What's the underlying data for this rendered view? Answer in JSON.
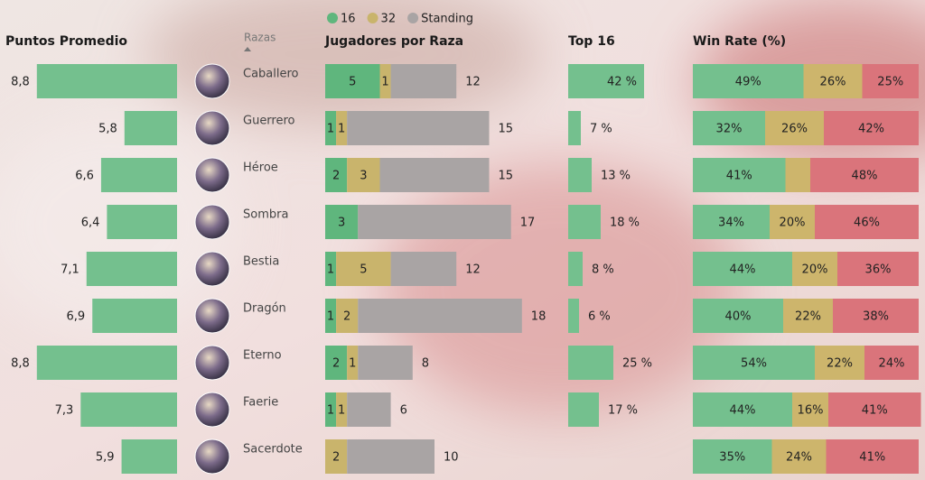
{
  "chart_data": [
    {
      "type": "hbar-left",
      "title": "Puntos Promedio",
      "values": [
        8.8,
        5.8,
        6.6,
        6.4,
        7.1,
        6.9,
        8.8,
        7.3,
        5.9
      ],
      "value_labels": [
        "8,8",
        "5,8",
        "6,6",
        "6,4",
        "7,1",
        "6,9",
        "8,8",
        "7,3",
        "5,9"
      ],
      "color": "#74c08e",
      "xlim": [
        4,
        10
      ]
    },
    {
      "type": "stacked-hbar",
      "title": "Jugadores por Raza",
      "category_label": "Razas",
      "categories": [
        "Caballero",
        "Guerrero",
        "Héroe",
        "Sombra",
        "Bestia",
        "Dragón",
        "Eterno",
        "Faerie",
        "Sacerdote"
      ],
      "series": [
        {
          "name": "16",
          "color": "#5fb67d",
          "values": [
            5,
            1,
            2,
            3,
            1,
            1,
            2,
            1,
            0
          ],
          "labels": true
        },
        {
          "name": "32",
          "color": "#c9b46c",
          "values": [
            1,
            1,
            3,
            0,
            5,
            2,
            1,
            1,
            2
          ],
          "labels": true
        },
        {
          "name": "Standing",
          "color": "#a9a4a4",
          "values": [
            6,
            13,
            10,
            14,
            6,
            15,
            5,
            4,
            8
          ],
          "labels": false
        }
      ],
      "totals": [
        12,
        15,
        15,
        17,
        12,
        18,
        8,
        6,
        10
      ],
      "xlim": [
        0,
        20
      ]
    },
    {
      "type": "hbar",
      "title": "Top 16",
      "values": [
        42,
        7,
        13,
        18,
        8,
        6,
        25,
        17,
        null
      ],
      "value_labels": [
        "42 %",
        "7 %",
        "13 %",
        "18 %",
        "8 %",
        "6 %",
        "25 %",
        "17 %",
        null
      ],
      "color": "#74c08e",
      "xlim": [
        0,
        50
      ]
    },
    {
      "type": "stacked-100",
      "title": "Win Rate (%)",
      "series": [
        {
          "color": "#74c08e",
          "values": [
            49,
            32,
            41,
            34,
            44,
            40,
            54,
            44,
            35
          ],
          "value_labels": [
            "49%",
            "32%",
            "41%",
            "34%",
            "44%",
            "40%",
            "54%",
            "44%",
            "35%"
          ]
        },
        {
          "color": "#cdb56c",
          "values": [
            26,
            26,
            11,
            20,
            20,
            22,
            22,
            16,
            24
          ],
          "value_labels": [
            "26%",
            "26%",
            null,
            "20%",
            "20%",
            "22%",
            "22%",
            "16%",
            "24%"
          ]
        },
        {
          "color": "#da747b",
          "values": [
            25,
            42,
            48,
            46,
            36,
            38,
            24,
            41,
            41
          ],
          "value_labels": [
            "25%",
            "42%",
            "48%",
            "46%",
            "36%",
            "38%",
            "24%",
            "41%",
            "41%"
          ]
        }
      ],
      "xlim": [
        0,
        100
      ]
    }
  ]
}
